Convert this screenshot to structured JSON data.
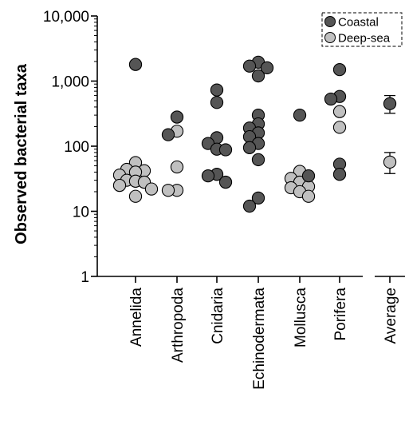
{
  "chart_data": {
    "type": "scatter",
    "title": "",
    "xlabel": "",
    "ylabel": "Observed bacterial taxa",
    "y_scale": "log",
    "ylim": [
      1,
      10000
    ],
    "y_ticks": [
      1,
      10,
      100,
      1000,
      10000
    ],
    "y_tick_labels": [
      "1",
      "10",
      "100",
      "1,000",
      "10,000"
    ],
    "grid": false,
    "legend_position": "top-right",
    "categories": [
      "Annelida",
      "Arthropoda",
      "Cnidaria",
      "Echinodermata",
      "Mollusca",
      "Porifera"
    ],
    "summary_label": "Average",
    "series": [
      {
        "name": "Coastal",
        "color": "#555555",
        "points": [
          {
            "category": "Annelida",
            "y": 1800
          },
          {
            "category": "Arthropoda",
            "y": 280
          },
          {
            "category": "Arthropoda",
            "y": 150
          },
          {
            "category": "Cnidaria",
            "y": 730
          },
          {
            "category": "Cnidaria",
            "y": 470
          },
          {
            "category": "Cnidaria",
            "y": 135
          },
          {
            "category": "Cnidaria",
            "y": 110
          },
          {
            "category": "Cnidaria",
            "y": 90
          },
          {
            "category": "Cnidaria",
            "y": 88
          },
          {
            "category": "Cnidaria",
            "y": 37
          },
          {
            "category": "Cnidaria",
            "y": 35
          },
          {
            "category": "Cnidaria",
            "y": 28
          },
          {
            "category": "Echinodermata",
            "y": 1950
          },
          {
            "category": "Echinodermata",
            "y": 1700
          },
          {
            "category": "Echinodermata",
            "y": 1600
          },
          {
            "category": "Echinodermata",
            "y": 1200
          },
          {
            "category": "Echinodermata",
            "y": 300
          },
          {
            "category": "Echinodermata",
            "y": 220
          },
          {
            "category": "Echinodermata",
            "y": 190
          },
          {
            "category": "Echinodermata",
            "y": 160
          },
          {
            "category": "Echinodermata",
            "y": 140
          },
          {
            "category": "Echinodermata",
            "y": 110
          },
          {
            "category": "Echinodermata",
            "y": 95
          },
          {
            "category": "Echinodermata",
            "y": 62
          },
          {
            "category": "Echinodermata",
            "y": 16
          },
          {
            "category": "Echinodermata",
            "y": 12
          },
          {
            "category": "Mollusca",
            "y": 300
          },
          {
            "category": "Mollusca",
            "y": 35
          },
          {
            "category": "Porifera",
            "y": 1500
          },
          {
            "category": "Porifera",
            "y": 580
          },
          {
            "category": "Porifera",
            "y": 530
          },
          {
            "category": "Porifera",
            "y": 53
          },
          {
            "category": "Porifera",
            "y": 37
          }
        ],
        "average": {
          "y": 450,
          "error_low": 320,
          "error_high": 600
        }
      },
      {
        "name": "Deep-sea",
        "color": "#c0c0c0",
        "points": [
          {
            "category": "Annelida",
            "y": 56
          },
          {
            "category": "Annelida",
            "y": 44
          },
          {
            "category": "Annelida",
            "y": 42
          },
          {
            "category": "Annelida",
            "y": 40
          },
          {
            "category": "Annelida",
            "y": 36
          },
          {
            "category": "Annelida",
            "y": 30
          },
          {
            "category": "Annelida",
            "y": 29
          },
          {
            "category": "Annelida",
            "y": 28
          },
          {
            "category": "Annelida",
            "y": 25
          },
          {
            "category": "Annelida",
            "y": 22
          },
          {
            "category": "Annelida",
            "y": 17
          },
          {
            "category": "Arthropoda",
            "y": 170
          },
          {
            "category": "Arthropoda",
            "y": 48
          },
          {
            "category": "Arthropoda",
            "y": 21
          },
          {
            "category": "Arthropoda",
            "y": 21
          },
          {
            "category": "Mollusca",
            "y": 41
          },
          {
            "category": "Mollusca",
            "y": 32
          },
          {
            "category": "Mollusca",
            "y": 28
          },
          {
            "category": "Mollusca",
            "y": 24
          },
          {
            "category": "Mollusca",
            "y": 23
          },
          {
            "category": "Mollusca",
            "y": 20
          },
          {
            "category": "Mollusca",
            "y": 17
          },
          {
            "category": "Porifera",
            "y": 340
          },
          {
            "category": "Porifera",
            "y": 195
          }
        ],
        "average": {
          "y": 57,
          "error_low": 38,
          "error_high": 80
        }
      }
    ]
  }
}
